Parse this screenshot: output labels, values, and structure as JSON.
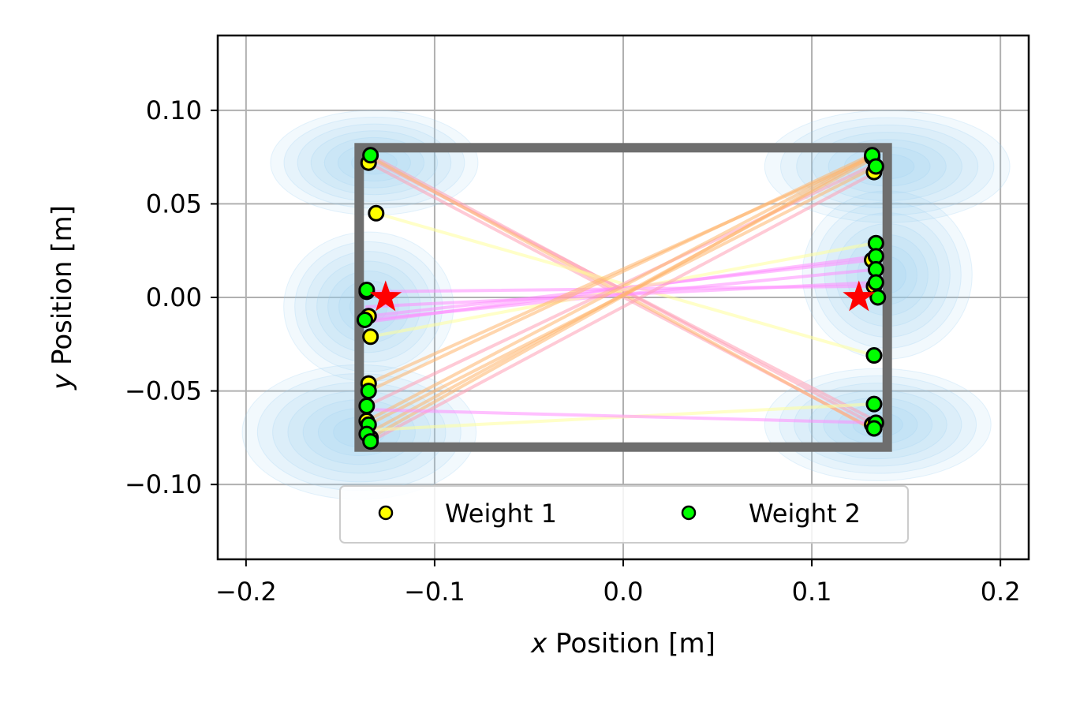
{
  "chart_data": {
    "type": "scatter",
    "xlabel_var": "x",
    "xlabel_rest": " Position [m]",
    "ylabel_var": "y",
    "ylabel_rest": " Position [m]",
    "xlim": [
      -0.215,
      0.215
    ],
    "ylim": [
      -0.14,
      0.14
    ],
    "xticks": [
      -0.2,
      -0.1,
      0.0,
      0.1,
      0.2
    ],
    "xtick_labels": [
      "−0.2",
      "−0.1",
      "0.0",
      "0.1",
      "0.2"
    ],
    "yticks": [
      -0.1,
      -0.05,
      0.0,
      0.05,
      0.1
    ],
    "ytick_labels": [
      "−0.10",
      "−0.05",
      "0.00",
      "0.05",
      "0.10"
    ],
    "grid": true,
    "legend_position": "bottom-center",
    "frame": {
      "x": [
        -0.14,
        0.14
      ],
      "y": [
        -0.08,
        0.08
      ],
      "color": "#6e6e6e"
    },
    "targets": [
      [
        -0.126,
        0.0
      ],
      [
        0.125,
        0.0
      ]
    ],
    "target_color": "#ff0000",
    "density_color": "#9ccff2",
    "density_blobs": [
      {
        "cx": -0.132,
        "cy": 0.072,
        "rx": 0.055,
        "ry": 0.028
      },
      {
        "cx": 0.14,
        "cy": 0.07,
        "rx": 0.065,
        "ry": 0.03
      },
      {
        "cx": -0.135,
        "cy": -0.005,
        "rx": 0.045,
        "ry": 0.04
      },
      {
        "cx": 0.14,
        "cy": 0.012,
        "rx": 0.045,
        "ry": 0.045
      },
      {
        "cx": -0.14,
        "cy": -0.072,
        "rx": 0.062,
        "ry": 0.036
      },
      {
        "cx": 0.135,
        "cy": -0.068,
        "rx": 0.06,
        "ry": 0.03
      }
    ],
    "line_colors": [
      "#ff9fb5",
      "#ffb46b",
      "#ff8cff",
      "#ffff9a"
    ],
    "series": [
      {
        "name": "Weight 1",
        "color": "#ffff00",
        "points": [
          [
            -0.135,
            0.072
          ],
          [
            -0.131,
            0.045
          ],
          [
            -0.136,
            0.003
          ],
          [
            -0.135,
            -0.01
          ],
          [
            -0.134,
            -0.021
          ],
          [
            -0.135,
            -0.046
          ],
          [
            -0.136,
            -0.066
          ],
          [
            -0.134,
            -0.075
          ],
          [
            0.132,
            0.075
          ],
          [
            0.133,
            0.067
          ],
          [
            0.132,
            0.02
          ],
          [
            0.133,
            0.006
          ],
          [
            0.132,
            -0.068
          ],
          [
            0.133,
            -0.07
          ]
        ]
      },
      {
        "name": "Weight 2",
        "color": "#00ff00",
        "points": [
          [
            -0.134,
            0.076
          ],
          [
            -0.136,
            0.004
          ],
          [
            -0.137,
            -0.012
          ],
          [
            -0.135,
            -0.05
          ],
          [
            -0.136,
            -0.058
          ],
          [
            -0.135,
            -0.068
          ],
          [
            -0.136,
            -0.073
          ],
          [
            -0.134,
            -0.077
          ],
          [
            0.132,
            0.076
          ],
          [
            0.134,
            0.07
          ],
          [
            0.134,
            0.029
          ],
          [
            0.134,
            0.022
          ],
          [
            0.134,
            0.015
          ],
          [
            0.134,
            0.008
          ],
          [
            0.135,
            0.0
          ],
          [
            0.133,
            -0.031
          ],
          [
            0.133,
            -0.057
          ],
          [
            0.134,
            -0.067
          ],
          [
            0.133,
            -0.07
          ]
        ]
      }
    ],
    "connections": [
      [
        [
          -0.134,
          0.076
        ],
        [
          0.133,
          -0.068
        ],
        0
      ],
      [
        [
          -0.135,
          0.072
        ],
        [
          0.132,
          -0.07
        ],
        0
      ],
      [
        [
          -0.134,
          0.074
        ],
        [
          0.134,
          -0.066
        ],
        0
      ],
      [
        [
          -0.134,
          0.075
        ],
        [
          0.133,
          -0.071
        ],
        1
      ],
      [
        [
          -0.131,
          0.045
        ],
        [
          0.133,
          -0.031
        ],
        3
      ],
      [
        [
          -0.136,
          0.003
        ],
        [
          0.133,
          0.006
        ],
        2
      ],
      [
        [
          -0.135,
          -0.01
        ],
        [
          0.132,
          0.02
        ],
        2
      ],
      [
        [
          -0.137,
          -0.012
        ],
        [
          0.134,
          0.015
        ],
        2
      ],
      [
        [
          -0.135,
          -0.013
        ],
        [
          0.134,
          0.022
        ],
        2
      ],
      [
        [
          -0.134,
          -0.021
        ],
        [
          0.133,
          0.029
        ],
        3
      ],
      [
        [
          -0.136,
          -0.005
        ],
        [
          0.134,
          0.008
        ],
        2
      ],
      [
        [
          -0.135,
          -0.046
        ],
        [
          0.132,
          0.075
        ],
        1
      ],
      [
        [
          -0.135,
          -0.05
        ],
        [
          0.133,
          0.077
        ],
        1
      ],
      [
        [
          -0.136,
          -0.058
        ],
        [
          0.133,
          0.071
        ],
        0
      ],
      [
        [
          -0.136,
          -0.066
        ],
        [
          0.132,
          0.076
        ],
        1
      ],
      [
        [
          -0.135,
          -0.068
        ],
        [
          0.134,
          0.07
        ],
        1
      ],
      [
        [
          -0.136,
          -0.073
        ],
        [
          0.132,
          0.074
        ],
        1
      ],
      [
        [
          -0.134,
          -0.075
        ],
        [
          0.133,
          0.076
        ],
        1
      ],
      [
        [
          -0.134,
          -0.077
        ],
        [
          0.134,
          0.067
        ],
        0
      ],
      [
        [
          -0.136,
          -0.071
        ],
        [
          0.133,
          -0.057
        ],
        3
      ],
      [
        [
          -0.134,
          -0.06
        ],
        [
          0.134,
          -0.067
        ],
        2
      ]
    ]
  }
}
